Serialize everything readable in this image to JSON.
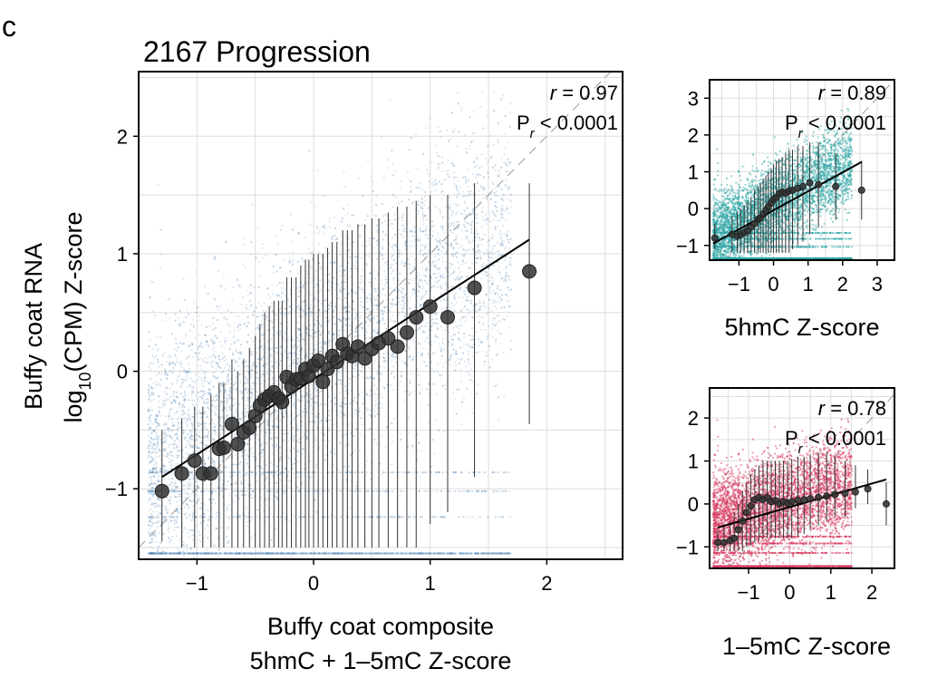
{
  "panel_letter": "c",
  "chart_data": [
    {
      "type": "scatter",
      "title": "2167 Progression",
      "xlabel_lines": [
        "Buffy coat composite",
        "5hmC + 1–5mC Z-score"
      ],
      "ylabel_lines": [
        "Buffy coat RNA",
        "log10(CPM) Z-score"
      ],
      "xlim": [
        -1.5,
        2.65
      ],
      "ylim": [
        -1.6,
        2.55
      ],
      "xticks": [
        -1,
        0,
        1,
        2
      ],
      "xtick_labels": [
        "−1",
        "0",
        "1",
        "2"
      ],
      "yticks": [
        -1,
        0,
        1,
        2
      ],
      "ytick_labels": [
        "−1",
        "0",
        "1",
        "2"
      ],
      "grid": true,
      "point_color": "#4a7db3",
      "stat_r": "0.97",
      "stat_p": "< 0.0001",
      "fit_line": {
        "x0": -1.3,
        "y0": -0.9,
        "x1": 1.85,
        "y1": 1.12
      },
      "binned_means": {
        "x": [
          -1.3,
          -1.13,
          -1.02,
          -0.95,
          -0.88,
          -0.81,
          -0.77,
          -0.7,
          -0.65,
          -0.6,
          -0.55,
          -0.5,
          -0.46,
          -0.42,
          -0.38,
          -0.34,
          -0.3,
          -0.27,
          -0.23,
          -0.19,
          -0.15,
          -0.11,
          -0.07,
          -0.04,
          0.0,
          0.04,
          0.08,
          0.12,
          0.16,
          0.2,
          0.25,
          0.29,
          0.33,
          0.38,
          0.44,
          0.5,
          0.56,
          0.64,
          0.72,
          0.8,
          0.88,
          1.0,
          1.15,
          1.38,
          1.85
        ],
        "y": [
          -1.02,
          -0.87,
          -0.76,
          -0.87,
          -0.87,
          -0.66,
          -0.65,
          -0.45,
          -0.62,
          -0.52,
          -0.48,
          -0.38,
          -0.29,
          -0.24,
          -0.21,
          -0.18,
          -0.23,
          -0.26,
          -0.05,
          -0.13,
          -0.07,
          -0.06,
          0.02,
          -0.04,
          0.05,
          0.09,
          -0.09,
          0.02,
          0.13,
          0.08,
          0.23,
          0.15,
          0.13,
          0.21,
          0.11,
          0.19,
          0.24,
          0.28,
          0.21,
          0.33,
          0.46,
          0.55,
          0.46,
          0.71,
          0.85
        ],
        "err_low": [
          -1.45,
          -1.5,
          -1.5,
          -1.5,
          -1.5,
          -1.5,
          -1.5,
          -1.5,
          -1.5,
          -1.5,
          -1.5,
          -1.5,
          -1.5,
          -1.5,
          -1.5,
          -1.5,
          -1.5,
          -1.5,
          -1.5,
          -1.5,
          -1.5,
          -1.5,
          -1.5,
          -1.5,
          -1.5,
          -1.5,
          -1.5,
          -1.5,
          -1.5,
          -1.5,
          -1.5,
          -1.5,
          -1.5,
          -1.5,
          -1.5,
          -1.5,
          -1.5,
          -1.5,
          -1.5,
          -1.5,
          -1.5,
          -1.3,
          -1.2,
          -0.9,
          -0.45
        ],
        "err_high": [
          -0.5,
          -0.4,
          -0.3,
          -0.3,
          -0.2,
          -0.1,
          -0.1,
          0.1,
          0.0,
          0.1,
          0.2,
          0.3,
          0.4,
          0.5,
          0.55,
          0.6,
          0.6,
          0.6,
          0.8,
          0.8,
          0.8,
          0.9,
          0.95,
          0.95,
          1.0,
          1.0,
          1.0,
          1.05,
          1.1,
          1.1,
          1.2,
          1.2,
          1.2,
          1.25,
          1.25,
          1.3,
          1.3,
          1.35,
          1.4,
          1.4,
          1.45,
          1.5,
          1.5,
          1.6,
          1.6
        ]
      }
    },
    {
      "type": "scatter",
      "title": "",
      "xlabel": "5hmC Z-score",
      "xlim": [
        -1.85,
        3.5
      ],
      "ylim": [
        -1.4,
        3.5
      ],
      "xticks": [
        -1,
        0,
        1,
        2,
        3
      ],
      "xtick_labels": [
        "−1",
        "0",
        "1",
        "2",
        "3"
      ],
      "yticks": [
        -1,
        0,
        1,
        2,
        3
      ],
      "ytick_labels": [
        "−1",
        "0",
        "1",
        "2",
        "3"
      ],
      "grid": true,
      "point_color": "#2aa7a7",
      "stat_r": "0.89",
      "stat_p": "< 0.0001",
      "fit_line": {
        "x0": -1.75,
        "y0": -0.95,
        "x1": 2.55,
        "y1": 1.27
      },
      "binned_means": {
        "x": [
          -1.7,
          -1.2,
          -1.05,
          -0.95,
          -0.85,
          -0.75,
          -0.65,
          -0.55,
          -0.45,
          -0.38,
          -0.3,
          -0.22,
          -0.15,
          -0.07,
          0.0,
          0.08,
          0.16,
          0.25,
          0.35,
          0.45,
          0.55,
          0.7,
          0.85,
          1.05,
          1.3,
          1.8,
          2.55
        ],
        "y": [
          -0.8,
          -0.7,
          -0.75,
          -0.7,
          -0.65,
          -0.6,
          -0.5,
          -0.4,
          -0.3,
          -0.25,
          -0.15,
          -0.05,
          0.05,
          0.15,
          0.25,
          0.3,
          0.4,
          0.45,
          0.42,
          0.48,
          0.5,
          0.55,
          0.6,
          0.7,
          0.65,
          0.6,
          0.5
        ],
        "err_low": [
          -1.1,
          -1.2,
          -1.2,
          -1.2,
          -1.2,
          -1.2,
          -1.2,
          -1.2,
          -1.2,
          -1.2,
          -1.2,
          -1.2,
          -1.2,
          -1.2,
          -1.2,
          -1.2,
          -1.2,
          -1.2,
          -1.2,
          -1.2,
          -1.1,
          -1.0,
          -0.9,
          -0.7,
          -0.5,
          -0.3,
          -0.3
        ],
        "err_high": [
          -0.4,
          -0.2,
          -0.1,
          0.0,
          0.1,
          0.2,
          0.3,
          0.5,
          0.6,
          0.7,
          0.8,
          0.9,
          1.0,
          1.1,
          1.2,
          1.3,
          1.35,
          1.4,
          1.5,
          1.6,
          1.6,
          1.7,
          1.7,
          1.8,
          1.8,
          1.5,
          1.3
        ]
      }
    },
    {
      "type": "scatter",
      "title": "",
      "xlabel": "1–5mC Z-score",
      "xlim": [
        -1.95,
        2.55
      ],
      "ylim": [
        -1.5,
        2.7
      ],
      "xticks": [
        -1,
        0,
        1,
        2
      ],
      "xtick_labels": [
        "−1",
        "0",
        "1",
        "2"
      ],
      "yticks": [
        -1,
        0,
        1,
        2
      ],
      "ytick_labels": [
        "−1",
        "0",
        "1",
        "2"
      ],
      "grid": true,
      "point_color": "#d9355f",
      "stat_r": "0.78",
      "stat_p": "< 0.0001",
      "fit_line": {
        "x0": -1.75,
        "y0": -0.55,
        "x1": 2.35,
        "y1": 0.57
      },
      "binned_means": {
        "x": [
          -1.75,
          -1.6,
          -1.45,
          -1.35,
          -1.25,
          -1.15,
          -1.05,
          -0.95,
          -0.85,
          -0.75,
          -0.65,
          -0.55,
          -0.45,
          -0.35,
          -0.25,
          -0.15,
          -0.05,
          0.05,
          0.2,
          0.35,
          0.5,
          0.7,
          0.9,
          1.1,
          1.35,
          1.6,
          1.9,
          2.35
        ],
        "y": [
          -0.9,
          -0.9,
          -0.85,
          -0.8,
          -0.6,
          -0.4,
          -0.2,
          -0.05,
          0.1,
          0.15,
          0.1,
          0.15,
          0.05,
          0.08,
          0.0,
          0.05,
          0.02,
          0.05,
          0.08,
          0.1,
          0.12,
          0.15,
          0.18,
          0.22,
          0.25,
          0.28,
          0.35,
          0.0
        ],
        "err_low": [
          -1.1,
          -1.1,
          -1.1,
          -1.1,
          -1.1,
          -1.1,
          -1.0,
          -0.95,
          -0.9,
          -0.85,
          -0.8,
          -0.8,
          -0.8,
          -0.8,
          -0.8,
          -0.8,
          -0.8,
          -0.8,
          -0.75,
          -0.7,
          -0.6,
          -0.5,
          -0.4,
          -0.3,
          -0.3,
          -0.1,
          0.0,
          -0.5
        ],
        "err_high": [
          -0.6,
          -0.5,
          -0.4,
          -0.2,
          0.0,
          0.3,
          0.5,
          0.7,
          0.8,
          0.9,
          1.0,
          1.0,
          1.0,
          1.0,
          1.0,
          1.0,
          1.0,
          1.05,
          1.1,
          1.1,
          1.15,
          1.2,
          1.2,
          1.1,
          1.0,
          0.9,
          0.8,
          0.5
        ]
      }
    }
  ]
}
